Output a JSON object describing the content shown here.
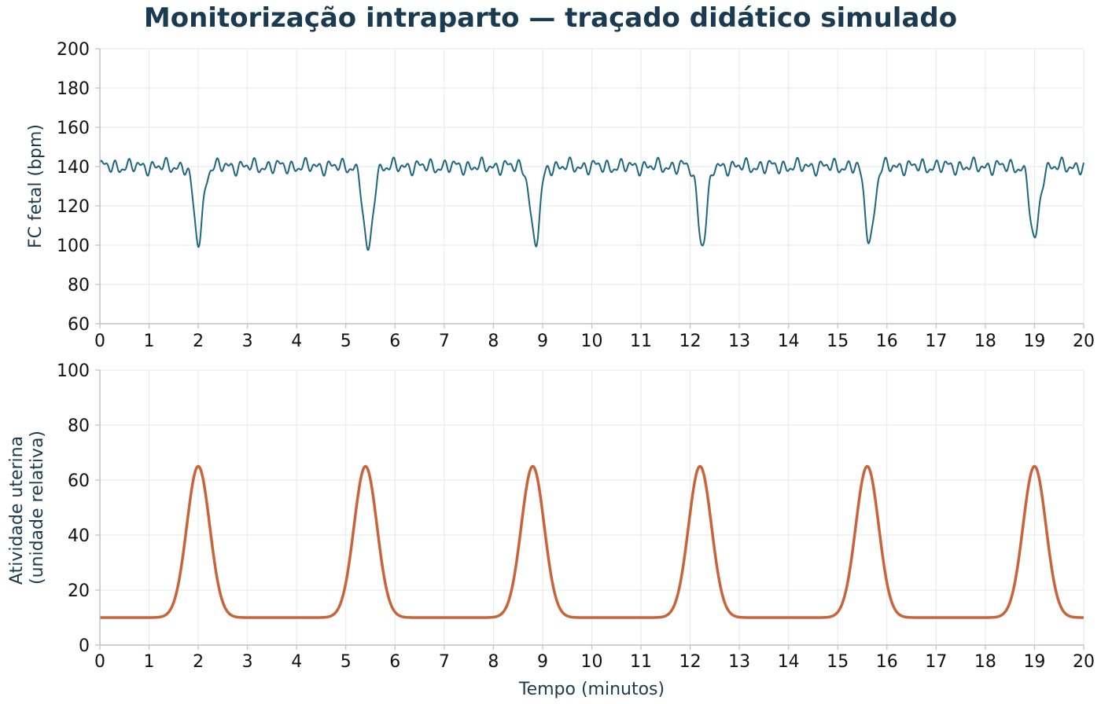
{
  "title": "Monitorização intraparto — traçado didático simulado",
  "colors": {
    "fhr": "#1f6680",
    "uterine": "#c8643c",
    "title": "#1a3a52"
  },
  "chart_data": [
    {
      "type": "line",
      "name": "fhr",
      "ylabel": "FC fetal (bpm)",
      "xlabel": "",
      "xlim": [
        0,
        20
      ],
      "ylim": [
        60,
        200
      ],
      "xticks": [
        0,
        1,
        2,
        3,
        4,
        5,
        6,
        7,
        8,
        9,
        10,
        11,
        12,
        13,
        14,
        15,
        16,
        17,
        18,
        19,
        20
      ],
      "yticks": [
        60,
        80,
        100,
        120,
        140,
        160,
        180,
        200
      ],
      "grid": true,
      "baseline": 140,
      "variability_amplitude": 4,
      "decelerations": [
        {
          "center": 2.0,
          "min": 102
        },
        {
          "center": 5.45,
          "min": 96
        },
        {
          "center": 8.85,
          "min": 100
        },
        {
          "center": 12.25,
          "min": 101
        },
        {
          "center": 15.65,
          "min": 102
        },
        {
          "center": 19.0,
          "min": 102
        }
      ]
    },
    {
      "type": "line",
      "name": "uterine",
      "ylabel": "Atividade uterina\n(unidade relativa)",
      "xlabel": "Tempo (minutos)",
      "xlim": [
        0,
        20
      ],
      "ylim": [
        0,
        100
      ],
      "xticks": [
        0,
        1,
        2,
        3,
        4,
        5,
        6,
        7,
        8,
        9,
        10,
        11,
        12,
        13,
        14,
        15,
        16,
        17,
        18,
        19,
        20
      ],
      "yticks": [
        0,
        20,
        40,
        60,
        80,
        100
      ],
      "grid": true,
      "baseline": 10,
      "contractions": [
        {
          "peak_time": 2.0,
          "peak": 65
        },
        {
          "peak_time": 5.4,
          "peak": 65
        },
        {
          "peak_time": 8.8,
          "peak": 65
        },
        {
          "peak_time": 12.2,
          "peak": 65
        },
        {
          "peak_time": 15.6,
          "peak": 65
        },
        {
          "peak_time": 19.0,
          "peak": 65
        }
      ]
    }
  ]
}
